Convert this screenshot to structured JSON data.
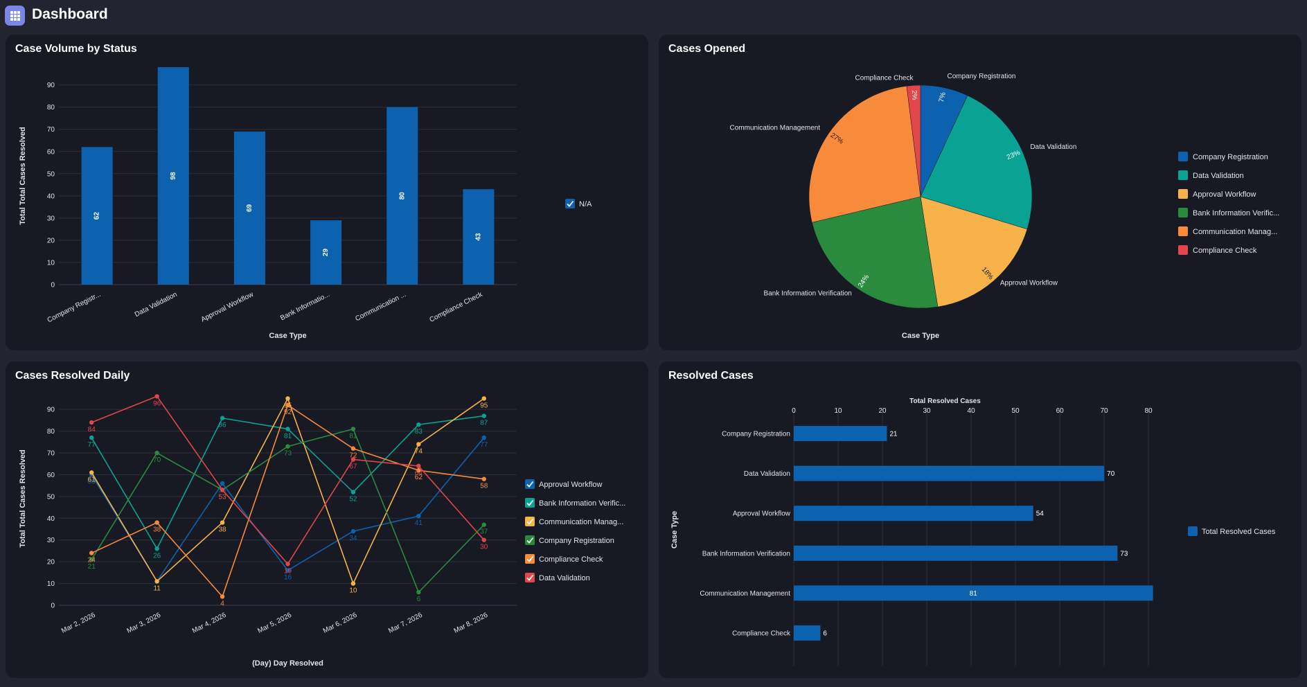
{
  "header": {
    "title": "Dashboard",
    "icon": "grid-icon"
  },
  "colors": {
    "blue": "#0d62b0",
    "teal": "#0aa393",
    "yellow": "#f7b34a",
    "green": "#2a8a3e",
    "orange": "#f88a3c",
    "red": "#e0464a",
    "grid": "#2b2e3a",
    "axis_text": "#e2e4ea"
  },
  "panels": {
    "volume": {
      "title": "Case Volume by Status"
    },
    "opened": {
      "title": "Cases Opened"
    },
    "daily": {
      "title": "Cases Resolved Daily"
    },
    "resolved": {
      "title": "Resolved Cases"
    }
  },
  "chart_data": [
    {
      "id": "volume",
      "type": "bar",
      "title": "Case Volume by Status",
      "xlabel": "Case Type",
      "ylabel": "Total Total Cases Resolved",
      "categories": [
        "Company Registr...",
        "Data Validation",
        "Approval Workflow",
        "Bank Informatio...",
        "Communication ...",
        "Compliance Check"
      ],
      "values": [
        62,
        98,
        69,
        29,
        80,
        43
      ],
      "yticks": [
        0,
        10,
        20,
        30,
        40,
        50,
        60,
        70,
        80,
        90
      ],
      "ylim": [
        0,
        98
      ],
      "legend": [
        "N/A"
      ],
      "legend_position": "right"
    },
    {
      "id": "opened",
      "type": "pie",
      "title": "Cases Opened",
      "xlabel": "Case Type",
      "slices": [
        {
          "label": "Company Registration",
          "legend": "Company Registration",
          "value": 7,
          "pct": "7%",
          "color": "#0d62b0"
        },
        {
          "label": "Data Validation",
          "legend": "Data Validation",
          "value": 23,
          "pct": "23%",
          "color": "#0aa393"
        },
        {
          "label": "Approval Workflow",
          "legend": "Approval Workflow",
          "value": 18,
          "pct": "18%",
          "color": "#f7b34a"
        },
        {
          "label": "Bank Information Verification",
          "legend": "Bank Information Verific...",
          "value": 24,
          "pct": "24%",
          "color": "#2a8a3e"
        },
        {
          "label": "Communication Management",
          "legend": "Communication Manag...",
          "value": 27,
          "pct": "27%",
          "color": "#f88a3c"
        },
        {
          "label": "Compliance Check",
          "legend": "Compliance Check",
          "value": 2,
          "pct": "2%",
          "color": "#e0464a"
        }
      ],
      "legend_position": "right"
    },
    {
      "id": "daily",
      "type": "line",
      "title": "Cases Resolved Daily",
      "xlabel": "(Day) Day Resolved",
      "ylabel": "Total Total Cases Resolved",
      "x": [
        "Mar 2, 2026",
        "Mar 3, 2026",
        "Mar 4, 2026",
        "Mar 5, 2026",
        "Mar 6, 2026",
        "Mar 7, 2026",
        "Mar 8, 2026"
      ],
      "yticks": [
        0,
        10,
        20,
        30,
        40,
        50,
        60,
        70,
        80,
        90
      ],
      "ylim": [
        0,
        98
      ],
      "series": [
        {
          "name": "Approval Workflow",
          "legend": "Approval Workflow",
          "color": "#0d62b0",
          "values": [
            60,
            11,
            56,
            16,
            34,
            41,
            77
          ]
        },
        {
          "name": "Bank Information Verification",
          "legend": "Bank Information Verific...",
          "color": "#0aa393",
          "values": [
            77,
            26,
            86,
            81,
            52,
            83,
            87
          ]
        },
        {
          "name": "Communication Management",
          "legend": "Communication Manag...",
          "color": "#f7b34a",
          "values": [
            61,
            11,
            38,
            95,
            10,
            74,
            95
          ]
        },
        {
          "name": "Company Registration",
          "legend": "Company Registration",
          "color": "#2a8a3e",
          "values": [
            21,
            70,
            53,
            73,
            81,
            6,
            37
          ]
        },
        {
          "name": "Compliance Check",
          "legend": "Compliance Check",
          "color": "#f88a3c",
          "values": [
            24,
            38,
            4,
            92,
            72,
            62,
            58
          ]
        },
        {
          "name": "Data Validation",
          "legend": "Data Validation",
          "color": "#e0464a",
          "values": [
            84,
            96,
            53,
            19,
            67,
            64,
            30
          ]
        }
      ],
      "legend_position": "right"
    },
    {
      "id": "resolved",
      "type": "bar",
      "orientation": "horizontal",
      "title": "Resolved Cases",
      "xlabel": "Total Resolved Cases",
      "ylabel": "Case Type",
      "categories": [
        "Company Registration",
        "Data Validation",
        "Approval Workflow",
        "Bank Information Verification",
        "Communication Management",
        "Compliance Check"
      ],
      "values": [
        21,
        70,
        54,
        73,
        81,
        6
      ],
      "xticks": [
        0,
        10,
        20,
        30,
        40,
        50,
        60,
        70,
        80
      ],
      "xlim": [
        0,
        82
      ],
      "legend": [
        "Total Resolved Cases"
      ],
      "legend_position": "right"
    }
  ]
}
